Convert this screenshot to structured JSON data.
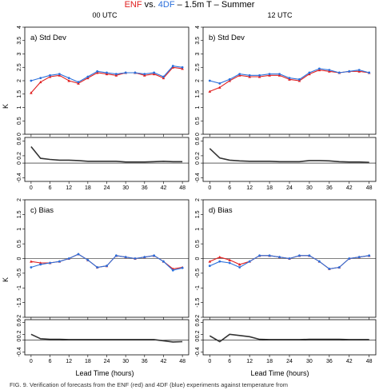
{
  "header": {
    "title_parts": [
      {
        "text": "ENF",
        "color": "#e02020"
      },
      {
        "text": " vs. ",
        "color": "#000000"
      },
      {
        "text": "4DF",
        "color": "#2a6fdb"
      },
      {
        "text": " – 1.5m T – Summer",
        "color": "#000000"
      }
    ],
    "col_left": "00 UTC",
    "col_right": "12 UTC"
  },
  "axes": {
    "xlabel": "Lead Time (hours)",
    "ylabel_top": "K",
    "ylabel_bottom": "K"
  },
  "caption": "FIG. 9. Verification of forecasts from the ENF (red) and 4DF (blue) experiments against temperature from",
  "chart_data": [
    {
      "id": "a",
      "type": "line",
      "label": "a) Std Dev",
      "x": [
        0,
        3,
        6,
        9,
        12,
        15,
        18,
        21,
        24,
        27,
        30,
        33,
        36,
        39,
        42,
        45,
        48
      ],
      "ylim": [
        0,
        4
      ],
      "yticks": [
        0,
        0.5,
        1,
        1.5,
        2,
        2.5,
        3,
        3.5,
        4
      ],
      "series": [
        {
          "name": "ENF",
          "color": "#e02020",
          "values": [
            1.55,
            1.95,
            2.15,
            2.2,
            2.0,
            1.9,
            2.1,
            2.3,
            2.25,
            2.2,
            2.3,
            2.3,
            2.2,
            2.25,
            2.1,
            2.5,
            2.45
          ]
        },
        {
          "name": "4DF",
          "color": "#2a6fdb",
          "values": [
            2.0,
            2.1,
            2.2,
            2.25,
            2.1,
            1.95,
            2.15,
            2.35,
            2.3,
            2.25,
            2.3,
            2.3,
            2.25,
            2.3,
            2.15,
            2.55,
            2.5
          ]
        }
      ]
    },
    {
      "id": "a-diff",
      "type": "line",
      "x": [
        0,
        3,
        6,
        9,
        12,
        15,
        18,
        21,
        24,
        27,
        30,
        33,
        36,
        39,
        42,
        45,
        48
      ],
      "ylim": [
        -0.5,
        0.7
      ],
      "yticks": [
        -0.4,
        0,
        0.2,
        0.6
      ],
      "series": [
        {
          "name": "",
          "color": "#333333",
          "values": [
            0.45,
            0.13,
            0.1,
            0.08,
            0.08,
            0.07,
            0.05,
            0.05,
            0.05,
            0.05,
            0.03,
            0.03,
            0.03,
            0.04,
            0.05,
            0.04,
            0.04
          ]
        }
      ]
    },
    {
      "id": "b",
      "type": "line",
      "label": "b) Std Dev",
      "x": [
        0,
        3,
        6,
        9,
        12,
        15,
        18,
        21,
        24,
        27,
        30,
        33,
        36,
        39,
        42,
        45,
        48
      ],
      "ylim": [
        0,
        4
      ],
      "yticks": [
        0,
        0.5,
        1,
        1.5,
        2,
        2.5,
        3,
        3.5,
        4
      ],
      "series": [
        {
          "name": "ENF",
          "color": "#e02020",
          "values": [
            1.6,
            1.75,
            2.0,
            2.2,
            2.15,
            2.15,
            2.2,
            2.2,
            2.05,
            2.0,
            2.25,
            2.4,
            2.35,
            2.3,
            2.35,
            2.35,
            2.3
          ]
        },
        {
          "name": "4DF",
          "color": "#2a6fdb",
          "values": [
            2.0,
            1.9,
            2.05,
            2.25,
            2.2,
            2.2,
            2.25,
            2.25,
            2.1,
            2.05,
            2.3,
            2.45,
            2.4,
            2.3,
            2.35,
            2.4,
            2.3
          ]
        }
      ]
    },
    {
      "id": "b-diff",
      "type": "line",
      "x": [
        0,
        3,
        6,
        9,
        12,
        15,
        18,
        21,
        24,
        27,
        30,
        33,
        36,
        39,
        42,
        45,
        48
      ],
      "ylim": [
        -0.5,
        0.7
      ],
      "yticks": [
        -0.4,
        0,
        0.2,
        0.6
      ],
      "series": [
        {
          "name": "",
          "color": "#333333",
          "values": [
            0.4,
            0.14,
            0.08,
            0.06,
            0.05,
            0.05,
            0.05,
            0.04,
            0.04,
            0.04,
            0.07,
            0.07,
            0.06,
            0.04,
            0.03,
            0.03,
            0.02
          ]
        }
      ]
    },
    {
      "id": "c",
      "type": "line",
      "label": "c) Bias",
      "x": [
        0,
        3,
        6,
        9,
        12,
        15,
        18,
        21,
        24,
        27,
        30,
        33,
        36,
        39,
        42,
        45,
        48
      ],
      "ylim": [
        -2,
        2
      ],
      "yticks": [
        -2,
        -1.5,
        -1,
        -0.5,
        0,
        0.5,
        1,
        1.5,
        2
      ],
      "series": [
        {
          "name": "ENF",
          "color": "#e02020",
          "values": [
            -0.1,
            -0.15,
            -0.15,
            -0.1,
            0.0,
            0.15,
            -0.05,
            -0.3,
            -0.25,
            0.1,
            0.05,
            0.0,
            0.05,
            0.1,
            -0.1,
            -0.35,
            -0.3
          ]
        },
        {
          "name": "4DF",
          "color": "#2a6fdb",
          "values": [
            -0.3,
            -0.2,
            -0.15,
            -0.1,
            0.0,
            0.15,
            -0.05,
            -0.3,
            -0.25,
            0.1,
            0.05,
            0.0,
            0.05,
            0.1,
            -0.1,
            -0.4,
            -0.32
          ]
        }
      ]
    },
    {
      "id": "c-diff",
      "type": "line",
      "x": [
        0,
        3,
        6,
        9,
        12,
        15,
        18,
        21,
        24,
        27,
        30,
        33,
        36,
        39,
        42,
        45,
        48
      ],
      "ylim": [
        -0.5,
        0.7
      ],
      "yticks": [
        -0.4,
        0,
        0.2,
        0.6
      ],
      "series": [
        {
          "name": "",
          "color": "#333333",
          "values": [
            0.2,
            0.05,
            0.03,
            0.03,
            0.02,
            0.02,
            0.02,
            0.02,
            0.02,
            0.02,
            0.02,
            0.02,
            0.02,
            0.02,
            -0.02,
            -0.06,
            -0.05
          ]
        }
      ]
    },
    {
      "id": "d",
      "type": "line",
      "label": "d) Bias",
      "x": [
        0,
        3,
        6,
        9,
        12,
        15,
        18,
        21,
        24,
        27,
        30,
        33,
        36,
        39,
        42,
        45,
        48
      ],
      "ylim": [
        -2,
        2
      ],
      "yticks": [
        -2,
        -1.5,
        -1,
        -0.5,
        0,
        0.5,
        1,
        1.5,
        2
      ],
      "series": [
        {
          "name": "ENF",
          "color": "#e02020",
          "values": [
            -0.1,
            0.05,
            -0.05,
            -0.2,
            -0.1,
            0.1,
            0.1,
            0.05,
            0.0,
            0.1,
            0.1,
            -0.1,
            -0.35,
            -0.3,
            0.0,
            0.05,
            0.1
          ]
        },
        {
          "name": "4DF",
          "color": "#2a6fdb",
          "values": [
            -0.25,
            -0.1,
            -0.15,
            -0.3,
            -0.1,
            0.1,
            0.1,
            0.05,
            0.0,
            0.1,
            0.1,
            -0.1,
            -0.35,
            -0.3,
            0.0,
            0.05,
            0.1
          ]
        }
      ]
    },
    {
      "id": "d-diff",
      "type": "line",
      "x": [
        0,
        3,
        6,
        9,
        12,
        15,
        18,
        21,
        24,
        27,
        30,
        33,
        36,
        39,
        42,
        45,
        48
      ],
      "ylim": [
        -0.5,
        0.7
      ],
      "yticks": [
        -0.4,
        0,
        0.2,
        0.6
      ],
      "series": [
        {
          "name": "",
          "color": "#333333",
          "values": [
            0.15,
            -0.05,
            0.2,
            0.16,
            0.12,
            0.03,
            0.02,
            0.02,
            0.02,
            0.02,
            0.03,
            0.03,
            0.03,
            0.03,
            0.02,
            0.02,
            0.02
          ]
        }
      ]
    }
  ]
}
